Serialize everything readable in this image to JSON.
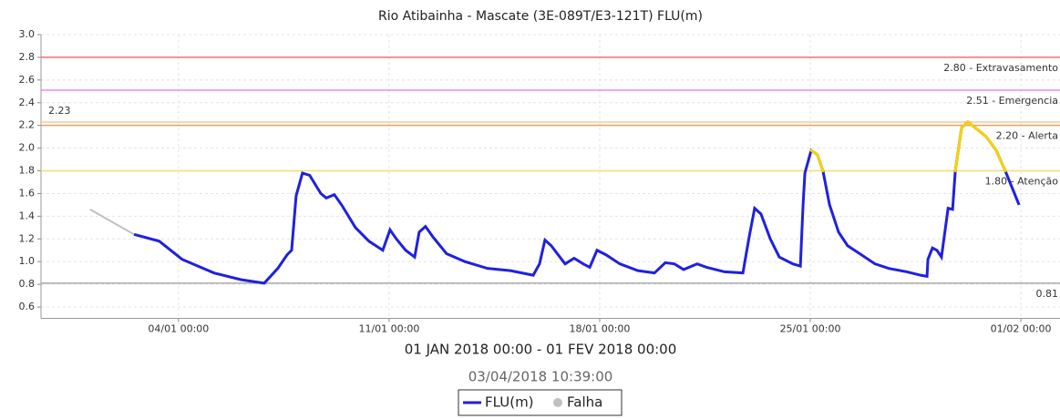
{
  "chart_data": {
    "type": "line",
    "title": "Rio Atibainha - Mascate (3E-089T/E3-121T) FLU(m)",
    "x_label": "01 JAN 2018 00:00 - 01 FEV 2018 00:00",
    "subtitle": "03/04/2018 10:39:00",
    "xlim": [
      -1.57,
      32.3
    ],
    "ylim": [
      0.5,
      3.0
    ],
    "xticks": [
      {
        "value": 3,
        "label": "04/01 00:00"
      },
      {
        "value": 10,
        "label": "11/01 00:00"
      },
      {
        "value": 17,
        "label": "18/01 00:00"
      },
      {
        "value": 24,
        "label": "25/01 00:00"
      },
      {
        "value": 31,
        "label": "01/02 00:00"
      }
    ],
    "yticks": [
      {
        "value": 3,
        "label": "3.0"
      },
      2.8,
      2.6,
      2.4,
      2.2,
      {
        "value": 2,
        "label": "2.0"
      },
      1.8,
      1.6,
      1.4,
      1.2,
      {
        "value": 1,
        "label": "1.0"
      },
      0.8,
      0.6
    ],
    "grid": true,
    "thresholds": [
      {
        "value": 2.8,
        "label": "2.80 - Extravasamento",
        "color": "#f47070",
        "anchor": "right"
      },
      {
        "value": 2.51,
        "label": "2.51 - Emergencia",
        "color": "#ee88ee",
        "anchor": "right"
      },
      {
        "value": 2.23,
        "label": "2.23",
        "color": "#f8c89a",
        "anchor": "left"
      },
      {
        "value": 2.2,
        "label": "2.20 - Alerta",
        "color": "#f0a060",
        "anchor": "right",
        "line_color": "#f07010"
      },
      {
        "value": 1.8,
        "label": "1.80 - Atenção",
        "color": "#f0e070",
        "anchor": "right",
        "line_color": "#f5d400"
      },
      {
        "value": 0.81,
        "label": "0.81",
        "color": "#aaaaaa",
        "anchor": "right"
      }
    ],
    "series": [
      {
        "name": "FLU(m)",
        "color": "#2020e0",
        "x": [
          1.52,
          2.36,
          3.12,
          4.18,
          5.09,
          5.85,
          6.3,
          6.61,
          6.76,
          6.91,
          7.12,
          7.36,
          7.73,
          7.91,
          8.18,
          8.42,
          8.88,
          9.33,
          9.79,
          10.03,
          10.24,
          10.55,
          10.85,
          11.0,
          11.21,
          11.45,
          11.91,
          12.52,
          13.27,
          14.03,
          14.79,
          15.0,
          15.18,
          15.39,
          15.85,
          16.15,
          16.45,
          16.67,
          16.91,
          17.21,
          17.67,
          18.27,
          18.82,
          19.18,
          19.48,
          19.79,
          20.24,
          20.55,
          21.15,
          21.76,
          21.97,
          22.15,
          22.36,
          22.67,
          22.97,
          23.42,
          23.67,
          23.76,
          23.82,
          24.03,
          24.24,
          24.42,
          24.64,
          24.94,
          25.24,
          25.7,
          26.15,
          26.61,
          27.21,
          27.67,
          27.88,
          27.91,
          28.06,
          28.21,
          28.36,
          28.58,
          28.73,
          28.82,
          29.03,
          29.24,
          29.48,
          29.85,
          30.18,
          30.48,
          30.94
        ],
        "values": [
          1.24,
          1.18,
          1.02,
          0.9,
          0.84,
          0.81,
          0.94,
          1.06,
          1.1,
          1.58,
          1.78,
          1.76,
          1.6,
          1.56,
          1.59,
          1.5,
          1.3,
          1.18,
          1.1,
          1.28,
          1.2,
          1.1,
          1.04,
          1.26,
          1.31,
          1.22,
          1.07,
          1.0,
          0.94,
          0.92,
          0.88,
          0.98,
          1.19,
          1.14,
          0.98,
          1.03,
          0.98,
          0.95,
          1.1,
          1.06,
          0.98,
          0.92,
          0.9,
          0.99,
          0.98,
          0.93,
          0.98,
          0.95,
          0.91,
          0.9,
          1.22,
          1.47,
          1.42,
          1.2,
          1.04,
          0.98,
          0.96,
          1.5,
          1.78,
          1.98,
          1.94,
          1.8,
          1.5,
          1.26,
          1.14,
          1.06,
          0.98,
          0.94,
          0.91,
          0.88,
          0.87,
          1.02,
          1.12,
          1.1,
          1.04,
          1.47,
          1.46,
          1.8,
          2.18,
          2.23,
          2.18,
          2.1,
          1.98,
          1.8,
          1.5
        ]
      },
      {
        "name": "Falha",
        "color": "#c0c0c0",
        "x": [
          0.06,
          1.52
        ],
        "values": [
          1.46,
          1.24
        ]
      }
    ]
  }
}
